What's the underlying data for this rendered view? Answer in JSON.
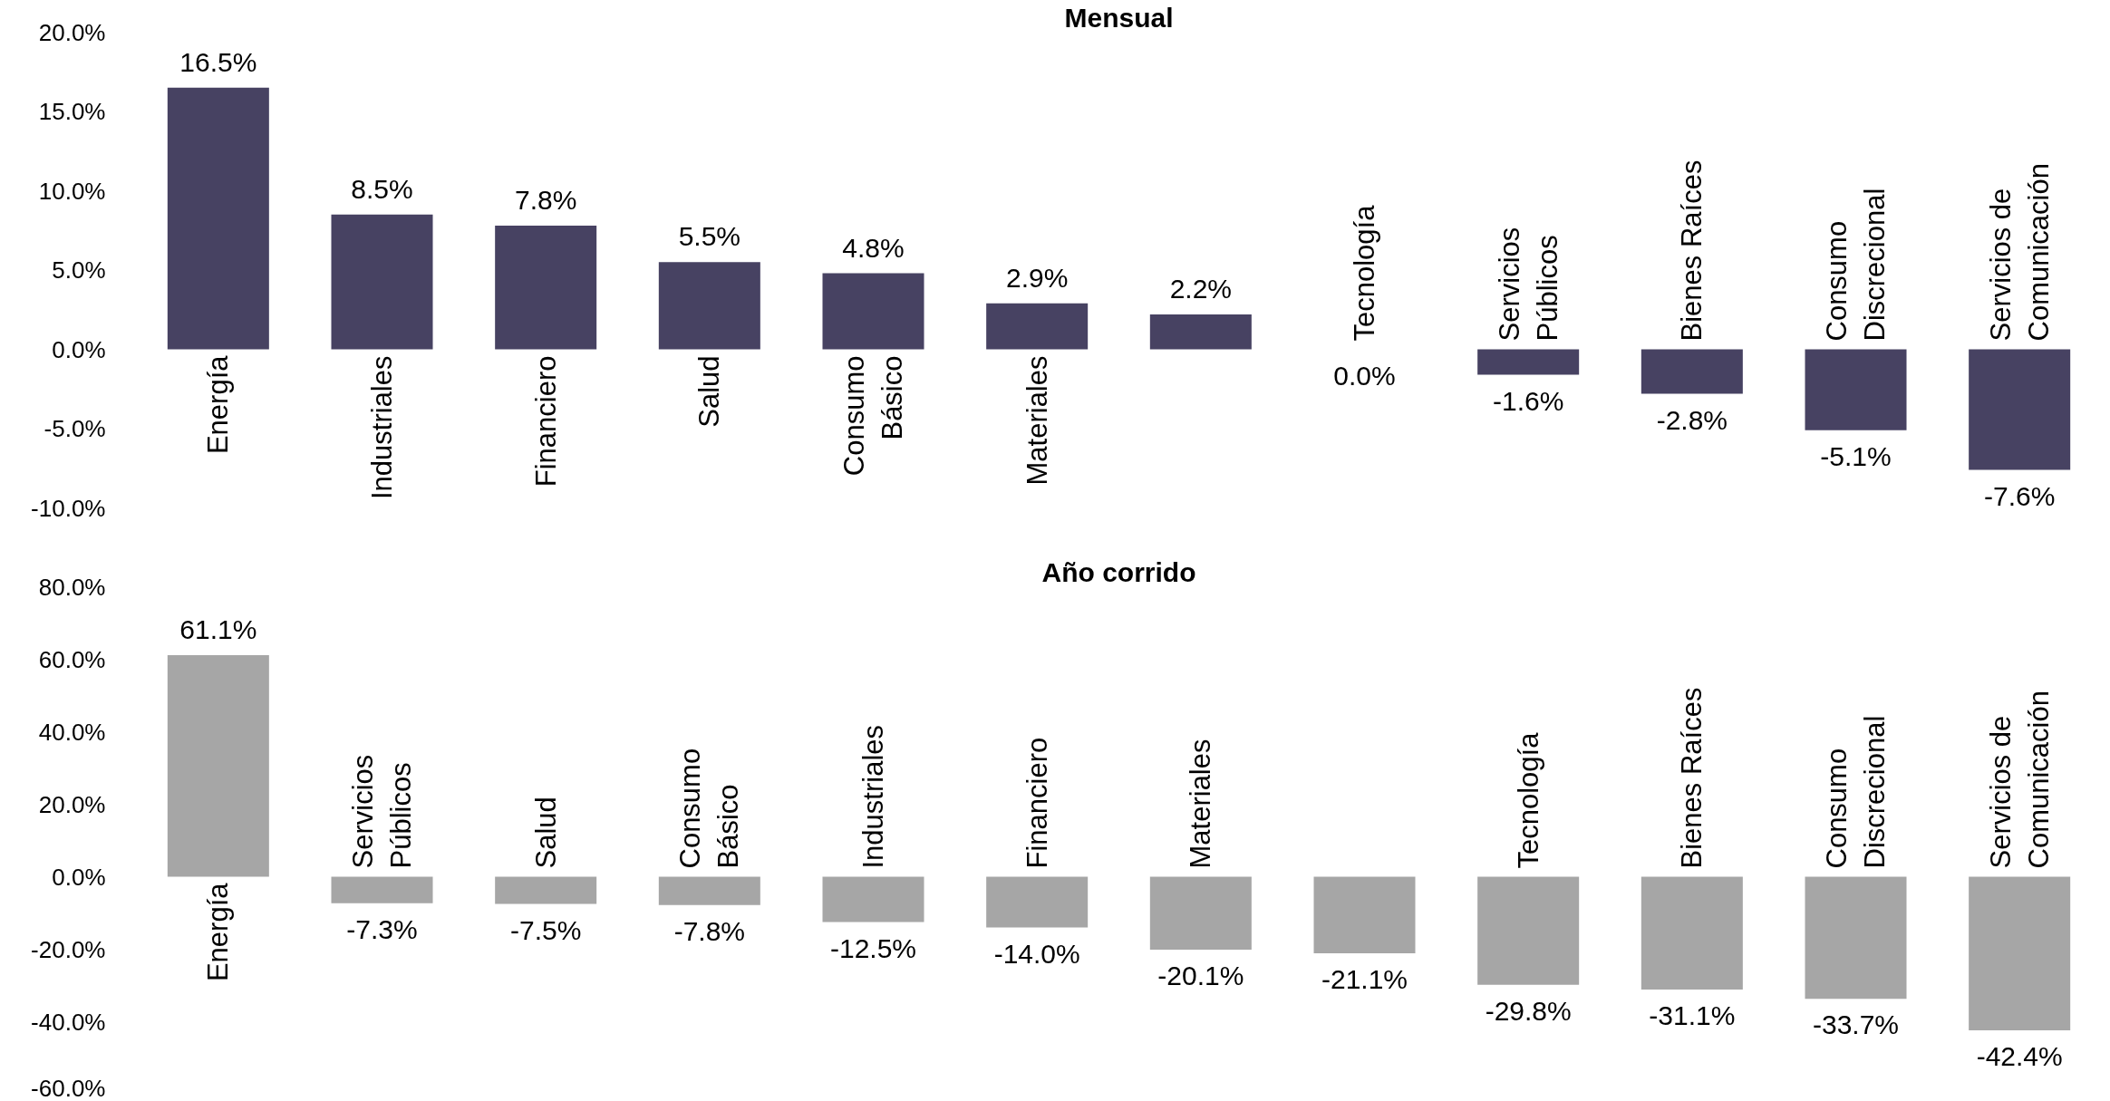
{
  "chart_data": [
    {
      "type": "bar",
      "title": "Mensual",
      "categories": [
        "Energía",
        "Industriales",
        "Financiero",
        "Salud",
        "Consumo Básico",
        "Materiales",
        null,
        "Tecnología",
        "Servicios Públicos",
        "Bienes Raíces",
        "Consumo Discrecional",
        "Servicios de Comunicación"
      ],
      "values": [
        16.5,
        8.5,
        7.8,
        5.5,
        4.8,
        2.9,
        2.2,
        0.0,
        -1.6,
        -2.8,
        -5.1,
        -7.6
      ],
      "color": "#474262",
      "value_labels": [
        "16.5%",
        "8.5%",
        "7.8%",
        "5.5%",
        "4.8%",
        "2.9%",
        "2.2%",
        "0.0%",
        "-1.6%",
        "-2.8%",
        "-5.1%",
        "-7.6%"
      ],
      "ylim": [
        -10,
        20
      ],
      "yticks": [
        {
          "value": -10,
          "label": "-10.0%"
        },
        {
          "value": -5,
          "label": "-5.0%"
        },
        {
          "value": 0,
          "label": "0.0%"
        },
        {
          "value": 5,
          "label": "5.0%"
        },
        {
          "value": 10,
          "label": "10.0%"
        },
        {
          "value": 15,
          "label": "15.0%"
        },
        {
          "value": 20,
          "label": "20.0%"
        }
      ],
      "grid": false
    },
    {
      "type": "bar",
      "title": "Año corrido",
      "categories": [
        "Energía",
        "Servicios Públicos",
        "Salud",
        "Consumo Básico",
        "Industriales",
        "Financiero",
        "Materiales",
        null,
        "Tecnología",
        "Bienes Raíces",
        "Consumo Discrecional",
        "Servicios de Comunicación"
      ],
      "values": [
        61.1,
        -7.3,
        -7.5,
        -7.8,
        -12.5,
        -14.0,
        -20.1,
        -21.1,
        -29.8,
        -31.1,
        -33.7,
        -42.4
      ],
      "color": "#a6a6a6",
      "value_labels": [
        "61.1%",
        "-7.3%",
        "-7.5%",
        "-7.8%",
        "-12.5%",
        "-14.0%",
        "-20.1%",
        "-21.1%",
        "-29.8%",
        "-31.1%",
        "-33.7%",
        "-42.4%"
      ],
      "ylim": [
        -60,
        80
      ],
      "yticks": [
        {
          "value": -60,
          "label": "-60.0%"
        },
        {
          "value": -40,
          "label": "-40.0%"
        },
        {
          "value": -20,
          "label": "-20.0%"
        },
        {
          "value": 0,
          "label": "0.0%"
        },
        {
          "value": 20,
          "label": "20.0%"
        },
        {
          "value": 40,
          "label": "40.0%"
        },
        {
          "value": 60,
          "label": "60.0%"
        },
        {
          "value": 80,
          "label": "80.0%"
        }
      ],
      "grid": false
    }
  ]
}
